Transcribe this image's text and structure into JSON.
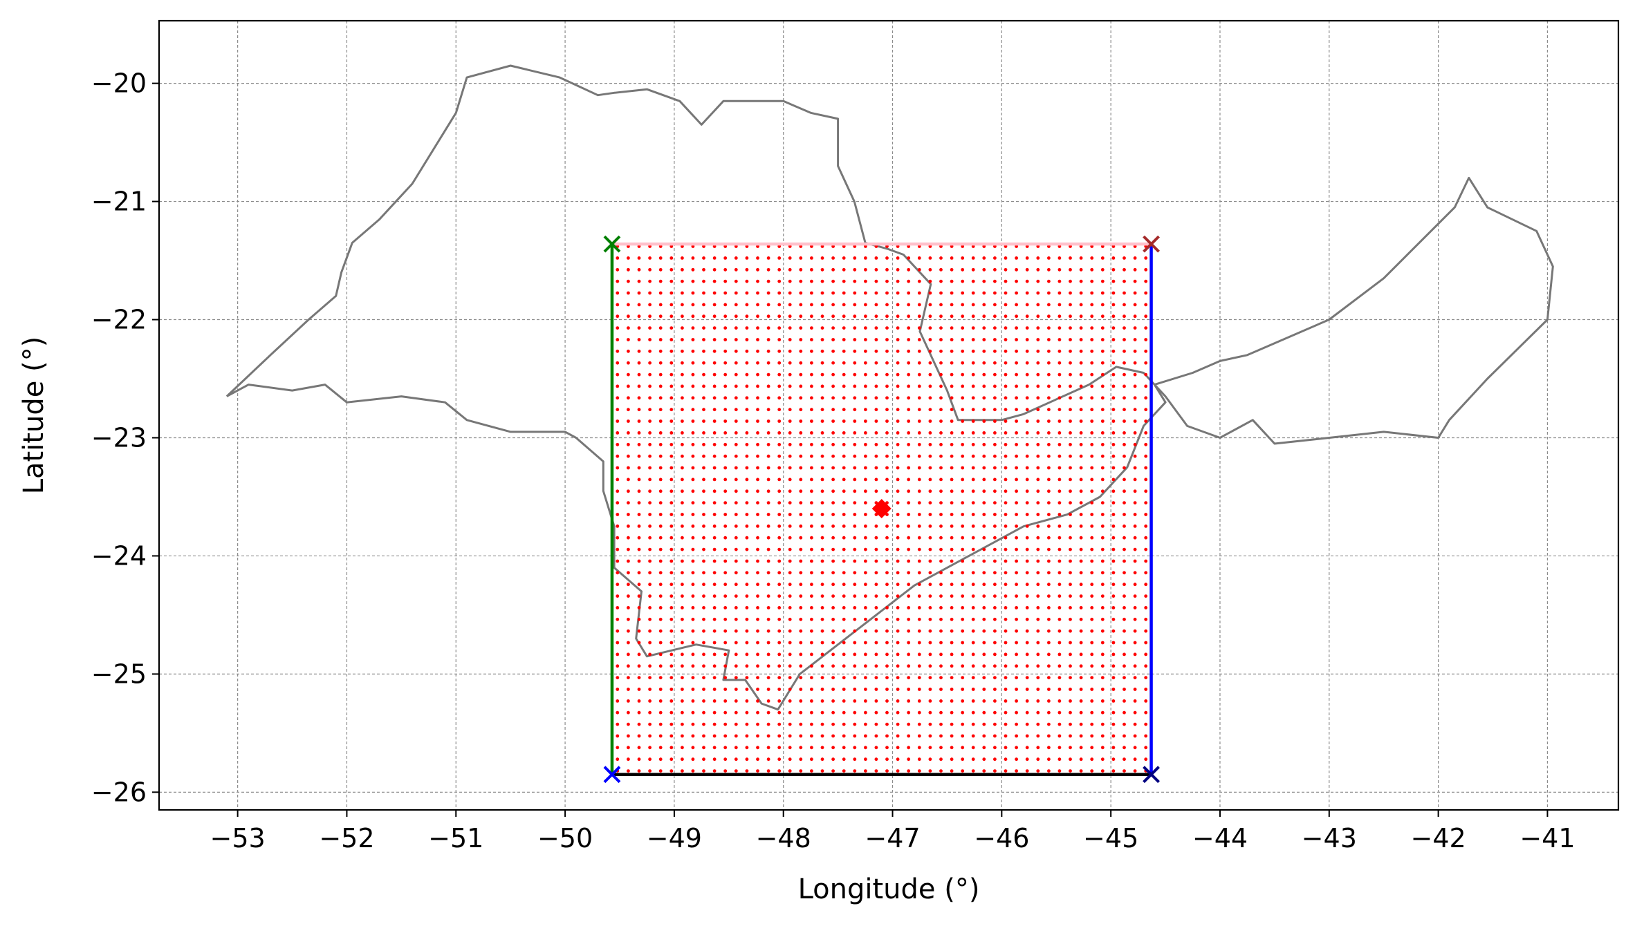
{
  "chart_data": {
    "type": "scatter",
    "title": "",
    "xlabel": "Longitude (°)",
    "ylabel": "Latitude (°)",
    "xlim": [
      -53.72,
      -40.35
    ],
    "ylim": [
      -26.15,
      -19.47
    ],
    "grid": true,
    "x_ticks": [
      -53,
      -52,
      -51,
      -50,
      -49,
      -48,
      -47,
      -46,
      -45,
      -44,
      -43,
      -42,
      -41
    ],
    "y_ticks": [
      -26,
      -25,
      -24,
      -23,
      -22,
      -21,
      -20
    ],
    "x_tick_labels": [
      "−53",
      "−52",
      "−51",
      "−50",
      "−49",
      "−48",
      "−47",
      "−46",
      "−45",
      "−44",
      "−43",
      "−42",
      "−41"
    ],
    "y_tick_labels": [
      "−26",
      "−25",
      "−24",
      "−23",
      "−22",
      "−21",
      "−20"
    ],
    "grid_region": {
      "lon_min": -49.52,
      "lon_max": -44.68,
      "lat_min": -25.82,
      "lat_max": -21.38,
      "n_lon": 50,
      "n_lat": 46,
      "color": "#ff0000"
    },
    "center_point": {
      "lon": -47.1,
      "lat": -23.6,
      "color": "#ff0000"
    },
    "boundary_lines": [
      {
        "side": "west",
        "color": "#008000",
        "from": [
          -49.57,
          -25.85
        ],
        "to": [
          -49.57,
          -21.36
        ]
      },
      {
        "side": "east",
        "color": "#0000ff",
        "from": [
          -44.63,
          -25.85
        ],
        "to": [
          -44.63,
          -21.36
        ]
      },
      {
        "side": "north",
        "color": "#ffc0cb",
        "from": [
          -49.57,
          -21.36
        ],
        "to": [
          -44.63,
          -21.36
        ]
      },
      {
        "side": "south",
        "color": "#000000",
        "from": [
          -49.57,
          -25.85
        ],
        "to": [
          -44.63,
          -25.85
        ]
      }
    ],
    "corner_markers": [
      {
        "name": "northwest",
        "lon": -49.57,
        "lat": -21.36,
        "color": "#008000"
      },
      {
        "name": "northeast",
        "lon": -44.63,
        "lat": -21.36,
        "color": "#a52a2a"
      },
      {
        "name": "southwest",
        "lon": -49.57,
        "lat": -25.85,
        "color": "#0000ff"
      },
      {
        "name": "southeast",
        "lon": -44.63,
        "lat": -25.85,
        "color": "#000080"
      }
    ],
    "state_outlines": [
      {
        "color": "#777777",
        "points": [
          [
            -53.1,
            -22.65
          ],
          [
            -52.9,
            -22.55
          ],
          [
            -52.5,
            -22.6
          ],
          [
            -52.2,
            -22.55
          ],
          [
            -52.0,
            -22.7
          ],
          [
            -51.5,
            -22.65
          ],
          [
            -51.1,
            -22.7
          ],
          [
            -50.9,
            -22.85
          ],
          [
            -50.5,
            -22.95
          ],
          [
            -50.0,
            -22.95
          ],
          [
            -49.9,
            -23.0
          ],
          [
            -49.65,
            -23.2
          ],
          [
            -49.65,
            -23.45
          ],
          [
            -49.55,
            -23.75
          ],
          [
            -49.55,
            -24.1
          ],
          [
            -49.3,
            -24.3
          ],
          [
            -49.35,
            -24.7
          ],
          [
            -49.25,
            -24.85
          ],
          [
            -48.8,
            -24.75
          ],
          [
            -48.5,
            -24.8
          ],
          [
            -48.55,
            -25.05
          ],
          [
            -48.35,
            -25.05
          ],
          [
            -48.2,
            -25.25
          ],
          [
            -48.05,
            -25.3
          ],
          [
            -47.85,
            -25.0
          ],
          [
            -47.5,
            -24.75
          ],
          [
            -46.8,
            -24.25
          ],
          [
            -46.3,
            -24.0
          ],
          [
            -45.8,
            -23.75
          ],
          [
            -45.4,
            -23.65
          ],
          [
            -45.1,
            -23.5
          ],
          [
            -44.85,
            -23.25
          ],
          [
            -44.7,
            -22.9
          ],
          [
            -44.5,
            -22.7
          ],
          [
            -44.6,
            -22.55
          ],
          [
            -44.25,
            -22.45
          ],
          [
            -44.0,
            -22.35
          ],
          [
            -43.75,
            -22.3
          ],
          [
            -43.0,
            -22.0
          ],
          [
            -42.5,
            -21.65
          ],
          [
            -41.85,
            -21.05
          ],
          [
            -41.72,
            -20.8
          ],
          [
            -41.55,
            -21.05
          ],
          [
            -41.1,
            -21.25
          ],
          [
            -40.95,
            -21.55
          ],
          [
            -41.0,
            -22.0
          ],
          [
            -41.55,
            -22.5
          ],
          [
            -41.9,
            -22.85
          ],
          [
            -42.0,
            -23.0
          ],
          [
            -42.5,
            -22.95
          ],
          [
            -43.0,
            -23.0
          ],
          [
            -43.5,
            -23.05
          ],
          [
            -43.7,
            -22.85
          ],
          [
            -44.0,
            -23.0
          ],
          [
            -44.3,
            -22.9
          ],
          [
            -44.5,
            -22.65
          ],
          [
            -44.7,
            -22.45
          ],
          [
            -44.95,
            -22.4
          ],
          [
            -45.2,
            -22.55
          ],
          [
            -45.8,
            -22.8
          ],
          [
            -46.0,
            -22.85
          ],
          [
            -46.4,
            -22.85
          ],
          [
            -46.5,
            -22.6
          ],
          [
            -46.75,
            -22.1
          ],
          [
            -46.65,
            -21.7
          ],
          [
            -46.9,
            -21.45
          ],
          [
            -47.05,
            -21.4
          ],
          [
            -47.25,
            -21.35
          ],
          [
            -47.35,
            -21.0
          ],
          [
            -47.5,
            -20.7
          ],
          [
            -47.5,
            -20.3
          ],
          [
            -47.75,
            -20.25
          ],
          [
            -48.0,
            -20.15
          ],
          [
            -48.55,
            -20.15
          ],
          [
            -48.75,
            -20.35
          ],
          [
            -48.95,
            -20.15
          ],
          [
            -49.25,
            -20.05
          ],
          [
            -49.55,
            -20.08
          ],
          [
            -49.7,
            -20.1
          ],
          [
            -50.05,
            -19.95
          ],
          [
            -50.5,
            -19.85
          ],
          [
            -50.9,
            -19.95
          ],
          [
            -51.0,
            -20.25
          ],
          [
            -51.4,
            -20.85
          ],
          [
            -51.7,
            -21.15
          ],
          [
            -51.95,
            -21.35
          ],
          [
            -52.05,
            -21.6
          ],
          [
            -52.1,
            -21.8
          ],
          [
            -52.35,
            -22.0
          ],
          [
            -52.7,
            -22.3
          ],
          [
            -53.1,
            -22.65
          ]
        ]
      }
    ]
  }
}
